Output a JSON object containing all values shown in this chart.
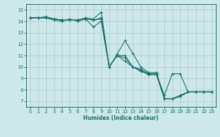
{
  "title": "",
  "xlabel": "Humidex (Indice chaleur)",
  "ylabel": "",
  "bg_color": "#cde8e8",
  "grid_color": "#b0cccc",
  "line_color": "#1a6e6e",
  "xlim": [
    -0.5,
    23.5
  ],
  "ylim": [
    6.5,
    15.5
  ],
  "xticks": [
    0,
    1,
    2,
    3,
    4,
    5,
    6,
    7,
    8,
    9,
    10,
    11,
    12,
    13,
    14,
    15,
    16,
    17,
    18,
    19,
    20,
    21,
    22,
    23
  ],
  "yticks": [
    7,
    8,
    9,
    10,
    11,
    12,
    13,
    14,
    15
  ],
  "lines": [
    {
      "x": [
        0,
        1,
        2,
        3,
        4,
        5,
        6,
        7,
        8,
        9,
        10,
        11,
        12,
        13,
        14,
        15,
        16,
        17,
        18,
        19,
        20,
        21,
        22,
        23
      ],
      "y": [
        14.3,
        14.3,
        14.3,
        14.2,
        14.1,
        14.1,
        14.1,
        14.3,
        14.2,
        14.8,
        10.0,
        11.1,
        12.3,
        11.2,
        10.0,
        9.5,
        9.5,
        7.2,
        7.2,
        7.5,
        7.8,
        7.8,
        7.8,
        7.8
      ]
    },
    {
      "x": [
        0,
        1,
        2,
        3,
        4,
        5,
        6,
        7,
        8,
        9,
        10,
        11,
        12,
        13,
        14,
        15,
        16,
        17,
        18,
        19,
        20,
        21,
        22,
        23
      ],
      "y": [
        14.3,
        14.3,
        14.4,
        14.2,
        14.1,
        14.1,
        14.1,
        14.2,
        14.1,
        14.3,
        10.0,
        11.0,
        10.8,
        10.0,
        9.8,
        9.4,
        9.4,
        7.2,
        7.2,
        7.5,
        7.8,
        7.8,
        7.8,
        7.8
      ]
    },
    {
      "x": [
        0,
        1,
        2,
        3,
        4,
        5,
        6,
        7,
        8,
        9,
        10,
        11,
        12,
        13,
        14,
        15,
        16,
        17,
        18,
        19,
        20,
        21,
        22,
        23
      ],
      "y": [
        14.3,
        14.3,
        14.3,
        14.2,
        14.1,
        14.1,
        14.1,
        14.2,
        14.1,
        14.2,
        10.0,
        11.0,
        10.5,
        10.0,
        9.7,
        9.3,
        9.3,
        7.2,
        7.2,
        7.4,
        7.8,
        7.8,
        7.8,
        7.8
      ]
    },
    {
      "x": [
        0,
        1,
        2,
        3,
        4,
        5,
        6,
        7,
        8,
        9,
        10,
        11,
        12,
        13,
        14,
        15,
        16,
        17,
        18,
        19,
        20,
        21,
        22,
        23
      ],
      "y": [
        14.3,
        14.3,
        14.3,
        14.1,
        14.0,
        14.2,
        14.0,
        14.2,
        13.5,
        14.0,
        10.0,
        11.0,
        11.0,
        10.0,
        9.6,
        9.4,
        9.4,
        7.5,
        9.4,
        9.4,
        7.8,
        7.8,
        7.8,
        7.8
      ]
    }
  ]
}
